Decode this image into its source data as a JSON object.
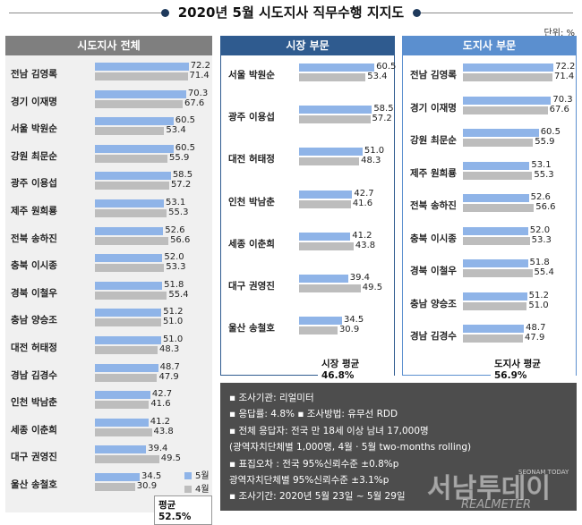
{
  "title": "2020년 5월 시도지사 직무수행 지지도",
  "unit": "단위: %",
  "colors": {
    "may": "#8fb4e8",
    "apr": "#bdbdbd",
    "overall_header": "#7f7f7f",
    "city_header": "#2f5b8f",
    "province_header": "#5b8fcf"
  },
  "chart_data": [
    {
      "type": "bar",
      "title": "시도지사 전체",
      "categories": [
        "전남 김영록",
        "경기 이재명",
        "서울 박원순",
        "강원 최문순",
        "광주 이용섭",
        "제주 원희룡",
        "전북 송하진",
        "충북 이시종",
        "경북 이철우",
        "충남 양승조",
        "대전 허태정",
        "경남 김경수",
        "인천 박남춘",
        "세종 이춘희",
        "대구 권영진",
        "울산 송철호"
      ],
      "series": [
        {
          "name": "5월",
          "values": [
            72.2,
            70.3,
            60.5,
            60.5,
            58.5,
            53.1,
            52.6,
            52.0,
            51.8,
            51.2,
            51.0,
            48.7,
            42.7,
            41.2,
            39.4,
            34.5
          ]
        },
        {
          "name": "4월",
          "values": [
            71.4,
            67.6,
            53.4,
            55.9,
            57.2,
            55.3,
            56.6,
            53.3,
            55.4,
            51.0,
            48.3,
            47.9,
            41.6,
            43.8,
            49.5,
            30.9
          ]
        }
      ],
      "average_label": "평균 52.5%"
    },
    {
      "type": "bar",
      "title": "시장 부문",
      "categories": [
        "서울 박원순",
        "광주 이용섭",
        "대전 허태정",
        "인천 박남춘",
        "세종 이춘희",
        "대구 권영진",
        "울산 송철호"
      ],
      "series": [
        {
          "name": "5월",
          "values": [
            60.5,
            58.5,
            51.0,
            42.7,
            41.2,
            39.4,
            34.5
          ]
        },
        {
          "name": "4월",
          "values": [
            53.4,
            57.2,
            48.3,
            41.6,
            43.8,
            49.5,
            30.9
          ]
        }
      ],
      "average_label": "시장 평균 46.8%"
    },
    {
      "type": "bar",
      "title": "도지사 부문",
      "categories": [
        "전남 김영록",
        "경기 이재명",
        "강원 최문순",
        "제주 원희룡",
        "전북 송하진",
        "충북 이시종",
        "경북 이철우",
        "충남 양승조",
        "경남 김경수"
      ],
      "series": [
        {
          "name": "5월",
          "values": [
            72.2,
            70.3,
            60.5,
            53.1,
            52.6,
            52.0,
            51.8,
            51.2,
            48.7
          ]
        },
        {
          "name": "4월",
          "values": [
            71.4,
            67.6,
            55.9,
            55.3,
            56.6,
            53.3,
            55.4,
            51.0,
            47.9
          ]
        }
      ],
      "average_label": "도지사 평균 56.9%"
    }
  ],
  "legend": {
    "may": "5월",
    "apr": "4월"
  },
  "survey_info": [
    "▪ 조사기관: 리얼미터",
    "▪ 응답률: 4.8% ▪ 조사방법: 유무선 RDD",
    "▪ 전체 응답자: 전국 만 18세 이상 남녀 17,000명",
    "   (광역자치단체별 1,000명, 4월 · 5월 two-months rolling)",
    "▪ 표집오차 : 전국 95%신뢰수준 ±0.8%p",
    "   광역자치단체별 95%신뢰수준 ±3.1%p",
    "▪ 조사기간: 2020년 5월 23일 ~ 5월 29일"
  ],
  "watermark": {
    "main": "서남투데이",
    "sub": "SEONAM TODAY",
    "overlay": "REALMETER"
  }
}
